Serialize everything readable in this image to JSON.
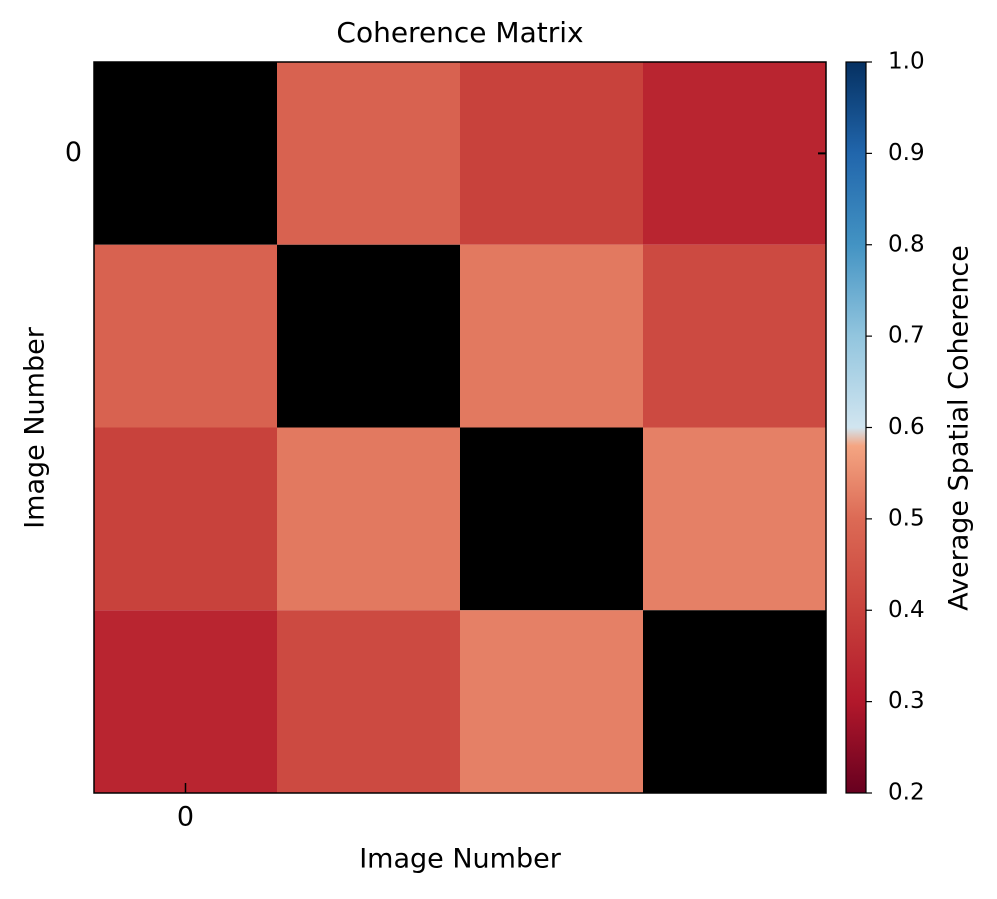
{
  "chart_data": {
    "type": "heatmap",
    "title": "Coherence Matrix",
    "xlabel": "Image Number",
    "ylabel": "Image Number",
    "z": [
      [
        null,
        0.48,
        0.4,
        0.33
      ],
      [
        0.48,
        null,
        0.52,
        0.42
      ],
      [
        0.4,
        0.52,
        null,
        0.53
      ],
      [
        0.33,
        0.42,
        0.53,
        null
      ]
    ],
    "missing_color": "#000000",
    "xlim": [
      -0.5,
      3.5
    ],
    "ylim": [
      3.5,
      -0.5
    ],
    "xticks": [
      0
    ],
    "yticks": [
      0
    ],
    "colorbar": {
      "label": "Average Spatial Coherence",
      "lim": [
        0.2,
        1.0
      ],
      "ticks": [
        {
          "value": 0.2,
          "label": "0.2"
        },
        {
          "value": 0.3,
          "label": "0.3"
        },
        {
          "value": 0.4,
          "label": "0.4"
        },
        {
          "value": 0.5,
          "label": "0.5"
        },
        {
          "value": 0.6,
          "label": "0.6"
        },
        {
          "value": 0.7,
          "label": "0.7"
        },
        {
          "value": 0.8,
          "label": "0.8"
        },
        {
          "value": 0.9,
          "label": "0.9"
        },
        {
          "value": 1.0,
          "label": "1.0"
        }
      ],
      "colormap": [
        {
          "value": 0.2,
          "color": "#67001f"
        },
        {
          "value": 0.3,
          "color": "#b2182b"
        },
        {
          "value": 0.4,
          "color": "#c8423c"
        },
        {
          "value": 0.5,
          "color": "#dc6a55"
        },
        {
          "value": 0.58,
          "color": "#f4a582"
        },
        {
          "value": 0.6,
          "color": "#d1e5f0"
        },
        {
          "value": 0.7,
          "color": "#92c5de"
        },
        {
          "value": 0.8,
          "color": "#4393c3"
        },
        {
          "value": 0.9,
          "color": "#2166ac"
        },
        {
          "value": 1.0,
          "color": "#053061"
        }
      ]
    }
  }
}
